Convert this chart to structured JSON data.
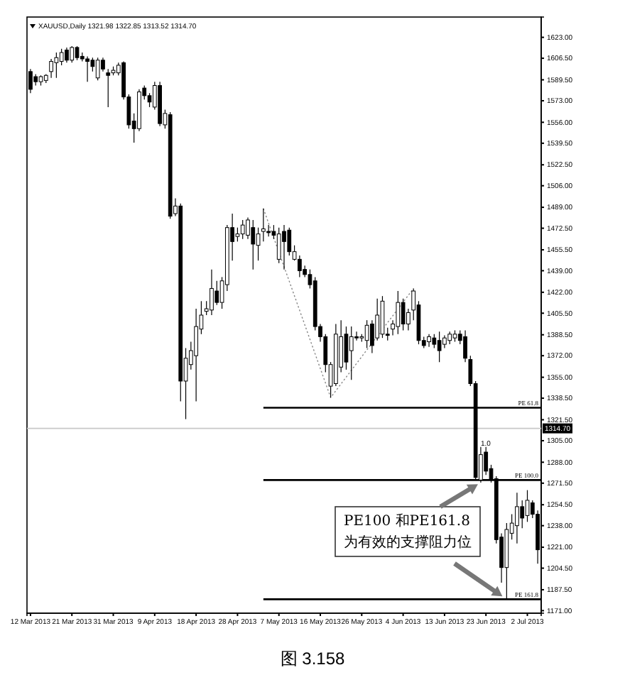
{
  "chart_data": {
    "type": "candlestick",
    "title": "XAUUSD,Daily 1321.98 1322.85 1313.52 1314.70",
    "categories": [
      "12 Mar 2013",
      null,
      null,
      null,
      null,
      null,
      null,
      null,
      "21 Mar 2013",
      null,
      null,
      null,
      null,
      null,
      null,
      null,
      "31 Mar 2013",
      null,
      null,
      null,
      null,
      null,
      null,
      null,
      "9 Apr 2013",
      null,
      null,
      null,
      null,
      null,
      null,
      null,
      "18 Apr 2013",
      null,
      null,
      null,
      null,
      null,
      null,
      null,
      "28 Apr 2013",
      null,
      null,
      null,
      null,
      null,
      null,
      null,
      "7 May 2013",
      null,
      null,
      null,
      null,
      null,
      null,
      null,
      "16 May 2013",
      null,
      null,
      null,
      null,
      null,
      null,
      null,
      "26 May 2013",
      null,
      null,
      null,
      null,
      null,
      null,
      null,
      "4 Jun 2013",
      null,
      null,
      null,
      null,
      null,
      null,
      null,
      "13 Jun 2013",
      null,
      null,
      null,
      null,
      null,
      null,
      null,
      "23 Jun 2013",
      null,
      null,
      null,
      null,
      null,
      null,
      null,
      "2 Jul 2013",
      null,
      null
    ],
    "color": "#000000",
    "ohlc": [
      [
        1596,
        1598,
        1579,
        1582
      ],
      [
        1592,
        1594,
        1585,
        1588
      ],
      [
        1588,
        1593,
        1585,
        1592
      ],
      [
        1589,
        1594,
        1587,
        1593
      ],
      [
        1596,
        1606,
        1591,
        1604
      ],
      [
        1603,
        1611,
        1591,
        1607
      ],
      [
        1604,
        1614,
        1601,
        1611
      ],
      [
        1613,
        1615,
        1603,
        1605
      ],
      [
        1605,
        1616,
        1603,
        1615
      ],
      [
        1615,
        1616,
        1605,
        1607
      ],
      [
        1608,
        1611,
        1604,
        1606
      ],
      [
        1606,
        1608,
        1588,
        1604
      ],
      [
        1605,
        1607,
        1596,
        1600
      ],
      [
        1591,
        1607,
        1589,
        1605
      ],
      [
        1605,
        1607,
        1596,
        1598
      ],
      [
        1595,
        1598,
        1568,
        1593
      ],
      [
        1595,
        1600,
        1593,
        1597
      ],
      [
        1595,
        1603,
        1593,
        1601
      ],
      [
        1603,
        1604,
        1574,
        1576
      ],
      [
        1576,
        1578,
        1551,
        1554
      ],
      [
        1557,
        1563,
        1540,
        1551
      ],
      [
        1551,
        1582,
        1549,
        1580
      ],
      [
        1583,
        1585,
        1574,
        1577
      ],
      [
        1577,
        1579,
        1568,
        1572
      ],
      [
        1568,
        1588,
        1566,
        1585
      ],
      [
        1585,
        1588,
        1553,
        1555
      ],
      [
        1554,
        1566,
        1551,
        1563
      ],
      [
        1562,
        1564,
        1480,
        1482
      ],
      [
        1484,
        1496,
        1482,
        1490
      ],
      [
        1490,
        1492,
        1336,
        1352
      ],
      [
        1352,
        1378,
        1322,
        1370
      ],
      [
        1365,
        1383,
        1361,
        1376
      ],
      [
        1372,
        1409,
        1336,
        1395
      ],
      [
        1393,
        1415,
        1389,
        1404
      ],
      [
        1407,
        1415,
        1404,
        1409
      ],
      [
        1408,
        1440,
        1404,
        1425
      ],
      [
        1423,
        1431,
        1412,
        1414
      ],
      [
        1414,
        1434,
        1409,
        1431
      ],
      [
        1428,
        1475,
        1423,
        1473
      ],
      [
        1473,
        1484,
        1447,
        1462
      ],
      [
        1466,
        1473,
        1462,
        1468
      ],
      [
        1468,
        1479,
        1464,
        1475
      ],
      [
        1467,
        1481,
        1464,
        1479
      ],
      [
        1473,
        1479,
        1440,
        1460
      ],
      [
        1459,
        1473,
        1447,
        1468
      ],
      [
        1470,
        1488,
        1462,
        1472
      ],
      [
        1470,
        1475,
        1466,
        1469
      ],
      [
        1470,
        1475,
        1464,
        1467
      ],
      [
        1448,
        1473,
        1445,
        1468
      ],
      [
        1470,
        1475,
        1440,
        1462
      ],
      [
        1471,
        1473,
        1451,
        1454
      ],
      [
        1448,
        1459,
        1447,
        1454
      ],
      [
        1448,
        1451,
        1434,
        1439
      ],
      [
        1440,
        1443,
        1434,
        1436
      ],
      [
        1436,
        1440,
        1425,
        1428
      ],
      [
        1431,
        1434,
        1392,
        1395
      ],
      [
        1395,
        1397,
        1383,
        1387
      ],
      [
        1387,
        1389,
        1359,
        1365
      ],
      [
        1348,
        1367,
        1339,
        1365
      ],
      [
        1350,
        1397,
        1348,
        1389
      ],
      [
        1363,
        1400,
        1359,
        1387
      ],
      [
        1389,
        1395,
        1361,
        1367
      ],
      [
        1376,
        1395,
        1353,
        1387
      ],
      [
        1387,
        1391,
        1384,
        1386
      ],
      [
        1386,
        1389,
        1383,
        1387
      ],
      [
        1384,
        1400,
        1378,
        1396
      ],
      [
        1397,
        1400,
        1374,
        1380
      ],
      [
        1386,
        1417,
        1384,
        1404
      ],
      [
        1389,
        1419,
        1386,
        1415
      ],
      [
        1389,
        1394,
        1384,
        1388
      ],
      [
        1393,
        1400,
        1388,
        1397
      ],
      [
        1395,
        1423,
        1389,
        1414
      ],
      [
        1414,
        1417,
        1392,
        1397
      ],
      [
        1397,
        1409,
        1392,
        1406
      ],
      [
        1408,
        1425,
        1400,
        1423
      ],
      [
        1412,
        1415,
        1381,
        1384
      ],
      [
        1384,
        1387,
        1378,
        1380
      ],
      [
        1383,
        1389,
        1379,
        1387
      ],
      [
        1386,
        1389,
        1378,
        1381
      ],
      [
        1384,
        1391,
        1367,
        1376
      ],
      [
        1381,
        1388,
        1378,
        1386
      ],
      [
        1384,
        1391,
        1381,
        1389
      ],
      [
        1386,
        1392,
        1383,
        1389
      ],
      [
        1389,
        1392,
        1381,
        1384
      ],
      [
        1387,
        1392,
        1367,
        1370
      ],
      [
        1369,
        1372,
        1348,
        1350
      ],
      [
        1350,
        1352,
        1274,
        1276
      ],
      [
        1274,
        1300,
        1272,
        1294
      ],
      [
        1296,
        1300,
        1278,
        1281
      ],
      [
        1283,
        1286,
        1272,
        1275
      ],
      [
        1275,
        1277,
        1224,
        1227
      ],
      [
        1229,
        1232,
        1193,
        1205
      ],
      [
        1205,
        1240,
        1180,
        1235
      ],
      [
        1232,
        1247,
        1227,
        1240
      ],
      [
        1238,
        1264,
        1224,
        1253
      ],
      [
        1253,
        1258,
        1236,
        1244
      ],
      [
        1246,
        1266,
        1241,
        1258
      ],
      [
        1256,
        1258,
        1244,
        1247
      ],
      [
        1247,
        1250,
        1208,
        1219
      ]
    ],
    "series": [
      {
        "type": "line",
        "color": "#888888",
        "line_style": "dotted",
        "values": [
          null,
          null,
          null,
          null,
          null,
          null,
          null,
          null,
          null,
          null,
          null,
          null,
          null,
          null,
          null,
          null,
          null,
          null,
          null,
          null,
          null,
          null,
          null,
          null,
          null,
          null,
          null,
          null,
          null,
          null,
          null,
          null,
          null,
          null,
          null,
          null,
          null,
          null,
          null,
          null,
          null,
          null,
          null,
          null,
          null,
          1488,
          null,
          null,
          null,
          null,
          null,
          null,
          null,
          null,
          null,
          null,
          null,
          null,
          1339,
          null,
          null,
          null,
          null,
          null,
          null,
          null,
          null,
          null,
          null,
          null,
          null,
          null,
          null,
          null,
          1425,
          null,
          null,
          null,
          null,
          null,
          null,
          null,
          null,
          null,
          null,
          null,
          null,
          null,
          null,
          null,
          null,
          null,
          null,
          null,
          null,
          null,
          null,
          null,
          null
        ]
      }
    ],
    "ylim": [
      1169,
      1639
    ],
    "yticks": [
      {
        "value": 1623,
        "label": "1623.00"
      },
      {
        "value": 1606.5,
        "label": "1606.50"
      },
      {
        "value": 1589.5,
        "label": "1589.50"
      },
      {
        "value": 1573,
        "label": "1573.00"
      },
      {
        "value": 1556,
        "label": "1556.00"
      },
      {
        "value": 1539.5,
        "label": "1539.50"
      },
      {
        "value": 1522.5,
        "label": "1522.50"
      },
      {
        "value": 1506,
        "label": "1506.00"
      },
      {
        "value": 1489,
        "label": "1489.00"
      },
      {
        "value": 1472.5,
        "label": "1472.50"
      },
      {
        "value": 1455.5,
        "label": "1455.50"
      },
      {
        "value": 1439,
        "label": "1439.00"
      },
      {
        "value": 1422,
        "label": "1422.00"
      },
      {
        "value": 1405.5,
        "label": "1405.50"
      },
      {
        "value": 1388.5,
        "label": "1388.50"
      },
      {
        "value": 1372,
        "label": "1372.00"
      },
      {
        "value": 1355,
        "label": "1355.00"
      },
      {
        "value": 1338.5,
        "label": "1338.50"
      },
      {
        "value": 1321.5,
        "label": "1321.50"
      },
      {
        "value": 1305,
        "label": "1305.00"
      },
      {
        "value": 1288,
        "label": "1288.00"
      },
      {
        "value": 1271.5,
        "label": "1271.50"
      },
      {
        "value": 1254.5,
        "label": "1254.50"
      },
      {
        "value": 1238,
        "label": "1238.00"
      },
      {
        "value": 1221,
        "label": "1221.00"
      },
      {
        "value": 1204.5,
        "label": "1204.50"
      },
      {
        "value": 1187.5,
        "label": "1187.50"
      },
      {
        "value": 1171,
        "label": "1171.00"
      }
    ],
    "ref_lines": [
      {
        "axis": "y",
        "value": 1314.7,
        "label": "1314.70",
        "color": "#c8c8c8"
      },
      {
        "axis": "y",
        "value": 1331,
        "label": "PE 61.8",
        "color": "#000000"
      },
      {
        "axis": "y",
        "value": 1274,
        "label": "PE 100.0",
        "color": "#000000"
      },
      {
        "axis": "y",
        "value": 1180,
        "label": "PE 161.8",
        "color": "#000000"
      }
    ],
    "annotations": [
      "PE100 和PE161.8\n为有效的支撑阻力位",
      "1.0",
      "图 3.158"
    ]
  }
}
